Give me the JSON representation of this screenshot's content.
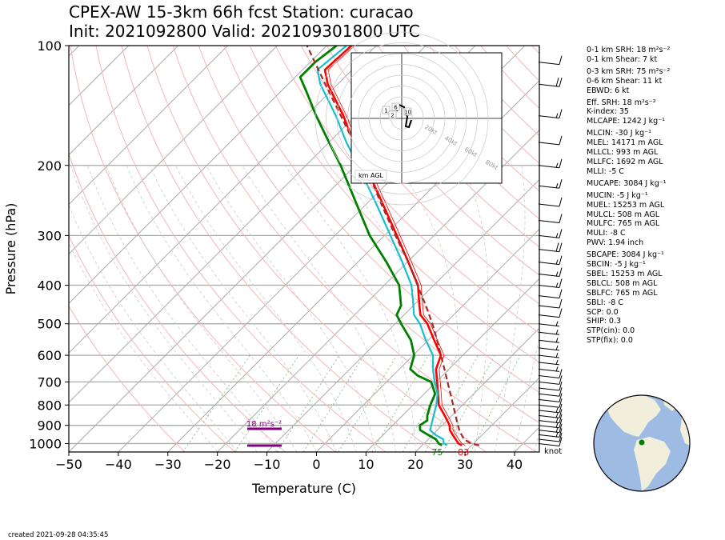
{
  "header": {
    "title_line1": "CPEX-AW 15-3km  66h fcst  Station: curacao",
    "title_line2": "Init: 2021092800  Valid: 202109301800 UTC"
  },
  "footer": {
    "created": "created 2021-09-28 04:35:45"
  },
  "barb_units": "knot",
  "hodograph": {
    "label": "km AGL",
    "ring_labels": [
      "20kt",
      "40kt",
      "60kt",
      "80kt"
    ],
    "height_labels": [
      "1",
      "2",
      "6",
      "10"
    ]
  },
  "indices": [
    "0-1 km SRH: 18 m²s⁻²",
    "0-1 km Shear: 7 kt",
    "0-3 km SRH: 75 m²s⁻²",
    "0-6 km Shear: 11 kt",
    "EBWD: 6 kt",
    "Eff. SRH: 18 m²s⁻²",
    "K-index: 35",
    "MLCAPE: 1242 J kg⁻¹",
    "MLCIN: -30 J kg⁻¹",
    "MLEL: 14171 m AGL",
    "MLLCL: 993 m AGL",
    "MLLFC: 1692 m AGL",
    "MLLI: -5 C",
    "MUCAPE: 3084 J kg⁻¹",
    "MUCIN: -5 J kg⁻¹",
    "MUEL: 15253 m AGL",
    "MULCL: 508 m AGL",
    "MULFC: 765 m AGL",
    "MULI: -8 C",
    "PWV: 1.94 inch",
    "SBCAPE: 3084 J kg⁻¹",
    "SBCIN: -5 J kg⁻¹",
    "SBEL: 15253 m AGL",
    "SBLCL: 508 m AGL",
    "SBLFC: 765 m AGL",
    "SBLI: -8 C",
    "SCP: 0.0",
    "SHIP: 0.3",
    "STP(cin): 0.0",
    "STP(fix): 0.0"
  ],
  "colors": {
    "temperature": "#ff0000",
    "dewpoint": "#008000",
    "wetbulb": "#17becf",
    "parcel": "#a52a2a",
    "srh": "#800080",
    "isotherm": "#aaaaaa",
    "dry_adiabat": "#f4b6b6",
    "mixing_ratio": "#88c888",
    "ocean": "#9ebbe4",
    "land": "#f1efdc",
    "station": "#008000"
  },
  "chart_data": {
    "type": "line",
    "xlabel": "Temperature (C)",
    "ylabel": "Pressure (hPa)",
    "xlim": [
      -50,
      45
    ],
    "ylim": [
      1050,
      100
    ],
    "xticks": [
      -50,
      -40,
      -30,
      -20,
      -10,
      0,
      10,
      20,
      30,
      40
    ],
    "yticks": [
      100,
      200,
      300,
      400,
      500,
      600,
      700,
      800,
      900,
      1000
    ],
    "y_scale": "log",
    "skew": "skew-T",
    "surface_labels": {
      "dewpoint": "75",
      "temperature": "83"
    },
    "srh_label": "18 m²s⁻²",
    "series": [
      {
        "name": "temperature",
        "points": [
          [
            1010,
            28
          ],
          [
            1000,
            27
          ],
          [
            975,
            25.5
          ],
          [
            950,
            24
          ],
          [
            925,
            22.5
          ],
          [
            900,
            21.5
          ],
          [
            850,
            18.5
          ],
          [
            800,
            15.2
          ],
          [
            750,
            12.8
          ],
          [
            700,
            10.2
          ],
          [
            650,
            7.4
          ],
          [
            600,
            5.6
          ],
          [
            550,
            1.2
          ],
          [
            500,
            -3.5
          ],
          [
            475,
            -6.7
          ],
          [
            450,
            -8.8
          ],
          [
            400,
            -13.2
          ],
          [
            350,
            -19.8
          ],
          [
            300,
            -27.5
          ],
          [
            250,
            -36.7
          ],
          [
            200,
            -48
          ],
          [
            175,
            -55
          ],
          [
            150,
            -62.5
          ],
          [
            125,
            -72
          ],
          [
            115,
            -75.5
          ],
          [
            100,
            -75
          ]
        ]
      },
      {
        "name": "wetbulb",
        "points": [
          [
            1010,
            25
          ],
          [
            1000,
            24
          ],
          [
            975,
            23
          ],
          [
            950,
            20.5
          ],
          [
            925,
            18.5
          ],
          [
            900,
            17.8
          ],
          [
            850,
            16.3
          ],
          [
            800,
            14.7
          ],
          [
            750,
            12.7
          ],
          [
            700,
            9.7
          ],
          [
            650,
            6.8
          ],
          [
            600,
            4
          ],
          [
            550,
            -0.5
          ],
          [
            500,
            -5
          ],
          [
            475,
            -8
          ],
          [
            450,
            -10
          ],
          [
            400,
            -14.5
          ],
          [
            350,
            -21
          ],
          [
            300,
            -28.8
          ],
          [
            250,
            -38
          ],
          [
            200,
            -49.5
          ],
          [
            175,
            -56.5
          ],
          [
            150,
            -64
          ],
          [
            125,
            -73.5
          ],
          [
            115,
            -77
          ],
          [
            100,
            -76
          ]
        ]
      },
      {
        "name": "dewpoint",
        "points": [
          [
            1010,
            24
          ],
          [
            1000,
            23
          ],
          [
            975,
            21.5
          ],
          [
            950,
            19
          ],
          [
            925,
            16.5
          ],
          [
            900,
            15.5
          ],
          [
            875,
            16
          ],
          [
            850,
            15
          ],
          [
            800,
            13.5
          ],
          [
            750,
            12.2
          ],
          [
            700,
            9
          ],
          [
            675,
            5
          ],
          [
            650,
            2.2
          ],
          [
            600,
            0.2
          ],
          [
            550,
            -3.5
          ],
          [
            500,
            -8.8
          ],
          [
            475,
            -11.5
          ],
          [
            450,
            -12.5
          ],
          [
            400,
            -17
          ],
          [
            350,
            -24.2
          ],
          [
            300,
            -33
          ],
          [
            250,
            -42
          ],
          [
            200,
            -53
          ],
          [
            175,
            -60
          ],
          [
            150,
            -68
          ],
          [
            130,
            -75
          ],
          [
            120,
            -79
          ],
          [
            110,
            -79
          ],
          [
            100,
            -78
          ]
        ]
      },
      {
        "name": "parcel",
        "points": [
          [
            1010,
            31.5
          ],
          [
            1000,
            29.5
          ],
          [
            975,
            27.2
          ],
          [
            950,
            25.8
          ],
          [
            925,
            24.4
          ],
          [
            900,
            23.2
          ],
          [
            850,
            20.7
          ],
          [
            800,
            18.1
          ],
          [
            750,
            15.3
          ],
          [
            700,
            12.3
          ],
          [
            650,
            9.1
          ],
          [
            600,
            5.6
          ],
          [
            550,
            1.8
          ],
          [
            500,
            -2.5
          ],
          [
            450,
            -7.5
          ],
          [
            400,
            -13.3
          ],
          [
            350,
            -19.8
          ],
          [
            300,
            -27.8
          ],
          [
            250,
            -37
          ],
          [
            200,
            -48
          ],
          [
            175,
            -55
          ],
          [
            150,
            -63
          ],
          [
            125,
            -72.5
          ],
          [
            100,
            -84
          ]
        ]
      }
    ],
    "wind_barbs_kt": [
      [
        1000,
        10
      ],
      [
        975,
        10
      ],
      [
        950,
        15
      ],
      [
        925,
        15
      ],
      [
        900,
        15
      ],
      [
        875,
        15
      ],
      [
        850,
        15
      ],
      [
        825,
        15
      ],
      [
        800,
        10
      ],
      [
        775,
        10
      ],
      [
        750,
        10
      ],
      [
        725,
        10
      ],
      [
        700,
        10
      ],
      [
        675,
        10
      ],
      [
        650,
        5
      ],
      [
        625,
        5
      ],
      [
        600,
        5
      ],
      [
        575,
        5
      ],
      [
        550,
        5
      ],
      [
        525,
        5
      ],
      [
        500,
        5
      ],
      [
        475,
        10
      ],
      [
        450,
        10
      ],
      [
        425,
        10
      ],
      [
        400,
        15
      ],
      [
        375,
        15
      ],
      [
        350,
        15
      ],
      [
        325,
        20
      ],
      [
        300,
        15
      ],
      [
        275,
        10
      ],
      [
        250,
        10
      ],
      [
        225,
        15
      ],
      [
        200,
        15
      ],
      [
        175,
        10
      ],
      [
        150,
        15
      ],
      [
        125,
        20
      ],
      [
        110,
        10
      ],
      [
        100,
        10
      ]
    ]
  }
}
